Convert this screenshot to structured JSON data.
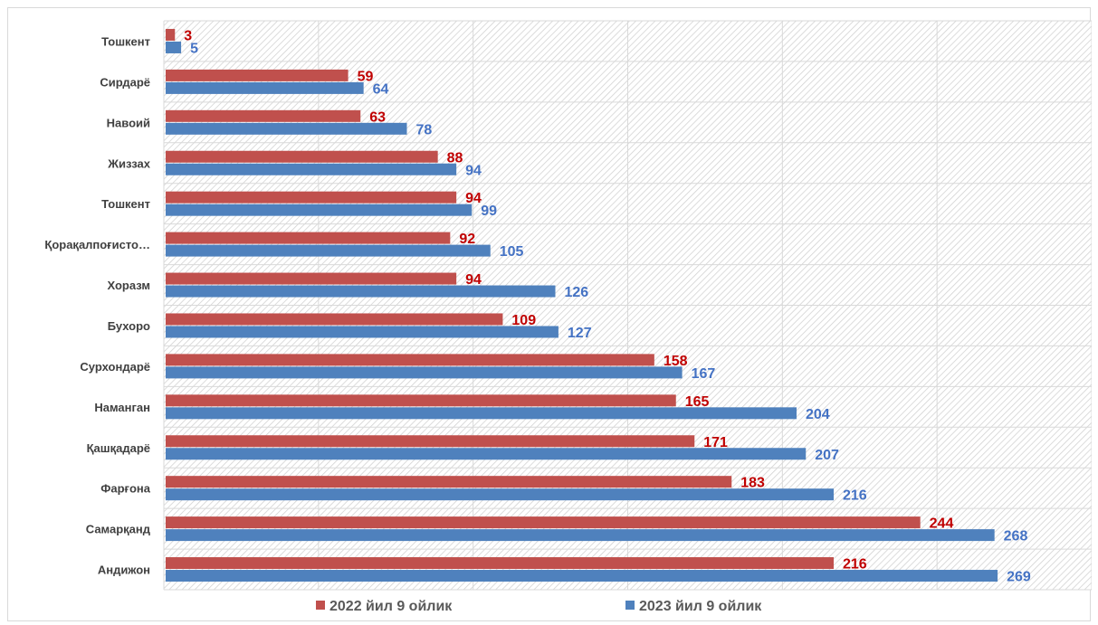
{
  "chart_data": {
    "type": "bar",
    "orientation": "horizontal",
    "categories": [
      "Тошкент",
      "Сирдарё",
      "Навоий",
      "Жиззах",
      "Тошкент",
      "Қорақалпоғисто…",
      "Хоразм",
      "Бухоро",
      "Сурхондарё",
      "Наманган",
      "Қашқадарё",
      "Фарғона",
      "Самарқанд",
      "Андижон"
    ],
    "series": [
      {
        "name": "2022 йил 9 ойлик",
        "color": "#C0504D",
        "label_color": "#C00000",
        "values": [
          3,
          59,
          63,
          88,
          94,
          92,
          94,
          109,
          158,
          165,
          171,
          183,
          244,
          216
        ]
      },
      {
        "name": "2023 йил 9 ойлик",
        "color": "#4F81BD",
        "label_color": "#4472C4",
        "values": [
          5,
          64,
          78,
          94,
          99,
          105,
          126,
          127,
          167,
          204,
          207,
          216,
          268,
          269
        ]
      }
    ],
    "xlim": [
      0,
      300
    ],
    "grid": true,
    "legend_position": "bottom",
    "title": "",
    "xlabel": "",
    "ylabel": ""
  }
}
